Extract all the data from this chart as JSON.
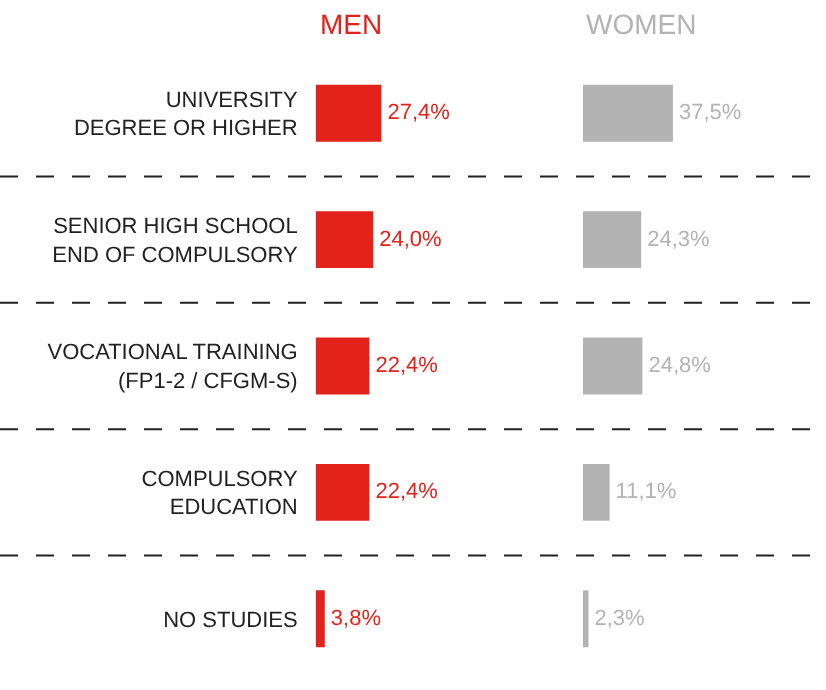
{
  "chart_data": [
    {
      "type": "bar",
      "orientation": "horizontal",
      "title": "MEN",
      "categories": [
        "UNIVERSITY\nDEGREE OR HIGHER",
        "SENIOR HIGH SCHOOL\nEND OF COMPULSORY",
        "VOCATIONAL TRAINING\n(FP1-2 / CFGM-S)",
        "COMPULSORY\nEDUCATION",
        "NO STUDIES"
      ],
      "values": [
        27.4,
        24.0,
        22.4,
        22.4,
        3.8
      ],
      "value_labels": [
        "27,4%",
        "24,0%",
        "22,4%",
        "22,4%",
        "3,8%"
      ],
      "color": "#e3221b",
      "tick_labels": "y"
    },
    {
      "type": "bar",
      "orientation": "horizontal",
      "title": "WOMEN",
      "categories": [
        null,
        null,
        null,
        null,
        null
      ],
      "values": [
        37.5,
        24.3,
        24.8,
        11.1,
        2.3
      ],
      "value_labels": [
        "37,5%",
        "24,3%",
        "24,8%",
        "11,1%",
        "2,3%"
      ],
      "color": "#b3b3b3",
      "tick_labels": false
    }
  ]
}
